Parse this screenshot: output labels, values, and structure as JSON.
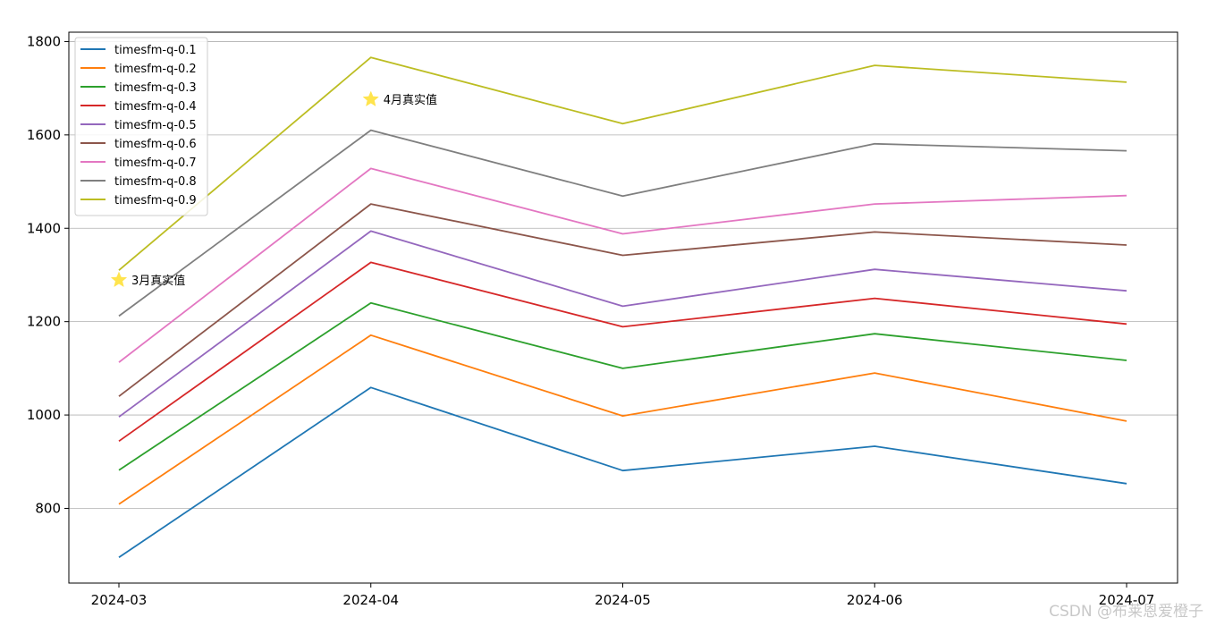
{
  "chart_data": {
    "type": "line",
    "title": "",
    "xlabel": "",
    "ylabel": "",
    "categories": [
      "2024-03",
      "2024-04",
      "2024-05",
      "2024-06",
      "2024-07"
    ],
    "ylim": [
      640,
      1820
    ],
    "yticks": [
      800,
      1000,
      1200,
      1400,
      1600,
      1800
    ],
    "grid": "horizontal",
    "legend_position": "top-left",
    "series": [
      {
        "name": "timesfm-q-0.1",
        "color": "#1f77b4",
        "values": [
          695,
          1059,
          881,
          933,
          853
        ]
      },
      {
        "name": "timesfm-q-0.2",
        "color": "#ff7f0e",
        "values": [
          809,
          1171,
          998,
          1090,
          987
        ]
      },
      {
        "name": "timesfm-q-0.3",
        "color": "#2ca02c",
        "values": [
          882,
          1240,
          1100,
          1174,
          1117
        ]
      },
      {
        "name": "timesfm-q-0.4",
        "color": "#d62728",
        "values": [
          944,
          1327,
          1189,
          1250,
          1195
        ]
      },
      {
        "name": "timesfm-q-0.5",
        "color": "#9467bd",
        "values": [
          996,
          1394,
          1233,
          1312,
          1266
        ]
      },
      {
        "name": "timesfm-q-0.6",
        "color": "#8c564b",
        "values": [
          1040,
          1452,
          1342,
          1392,
          1364
        ]
      },
      {
        "name": "timesfm-q-0.7",
        "color": "#e377c2",
        "values": [
          1113,
          1528,
          1388,
          1452,
          1470
        ]
      },
      {
        "name": "timesfm-q-0.8",
        "color": "#7f7f7f",
        "values": [
          1212,
          1610,
          1469,
          1581,
          1566
        ]
      },
      {
        "name": "timesfm-q-0.9",
        "color": "#bcbd22",
        "values": [
          1310,
          1766,
          1624,
          1749,
          1713
        ]
      }
    ],
    "annotations": [
      {
        "label": "3月真实值",
        "x": "2024-03",
        "y": 1289,
        "marker": "star",
        "color": "#ffe44d"
      },
      {
        "label": "4月真实值",
        "x": "2024-04",
        "y": 1676,
        "marker": "star",
        "color": "#ffe44d"
      }
    ]
  },
  "watermark": "CSDN @布莱恩爱橙子"
}
